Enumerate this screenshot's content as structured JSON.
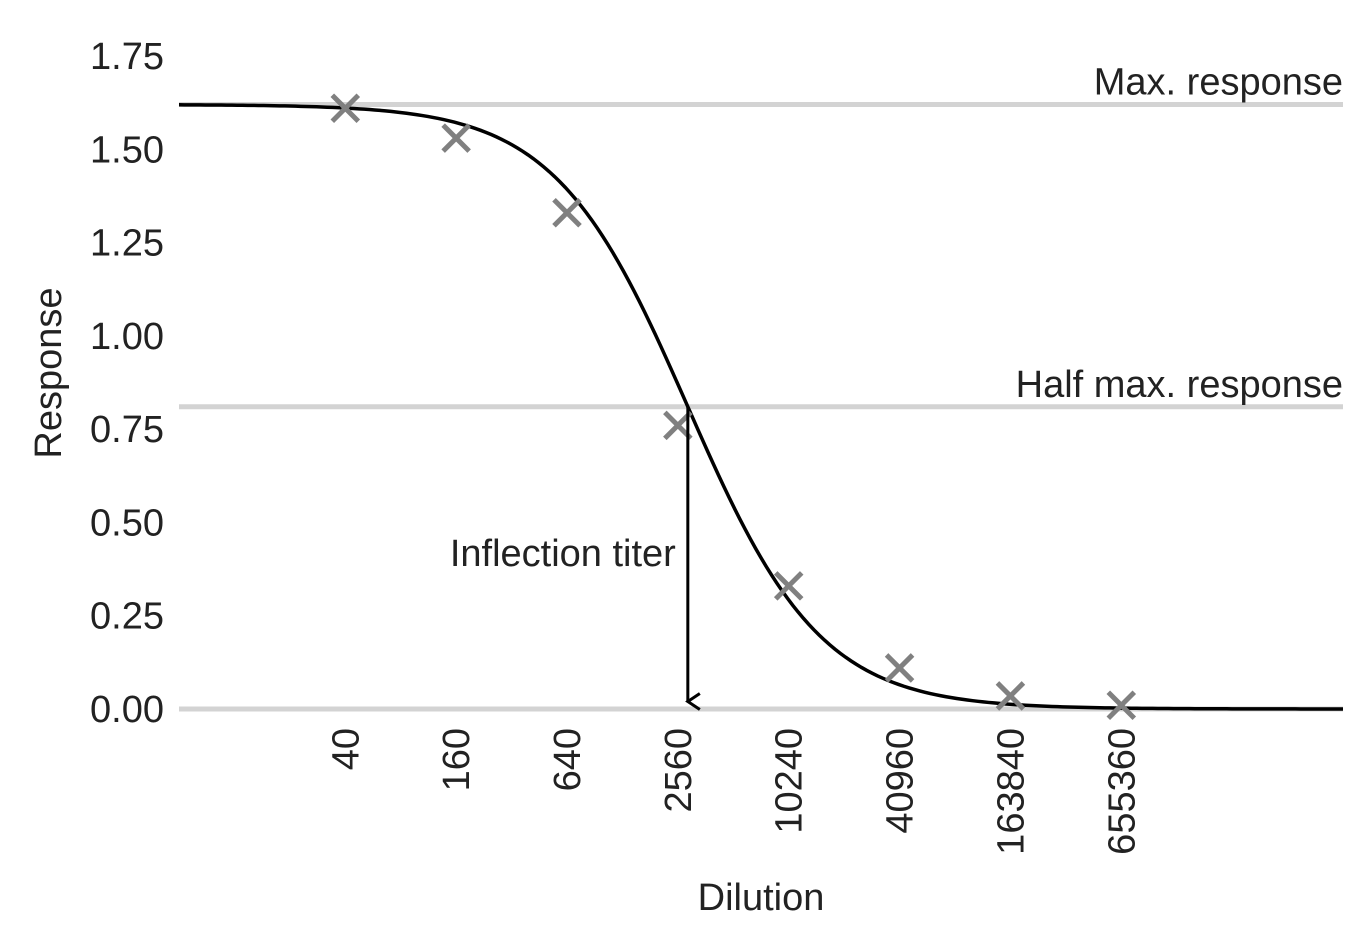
{
  "chart_data": {
    "type": "scatter",
    "xlabel": "Dilution",
    "ylabel": "Response",
    "x_scale": "log",
    "grid": false,
    "xlim": [
      5,
      10485760
    ],
    "ylim": [
      0,
      1.75
    ],
    "x_ticks": [
      {
        "value": 40,
        "label": "40"
      },
      {
        "value": 160,
        "label": "160"
      },
      {
        "value": 640,
        "label": "640"
      },
      {
        "value": 2560,
        "label": "2560"
      },
      {
        "value": 10240,
        "label": "10240"
      },
      {
        "value": 40960,
        "label": "40960"
      },
      {
        "value": 163840,
        "label": "163840"
      },
      {
        "value": 655360,
        "label": "655360"
      }
    ],
    "y_ticks": [
      {
        "value": 0,
        "label": "0.00"
      },
      {
        "value": 0.25,
        "label": "0.25"
      },
      {
        "value": 0.5,
        "label": "0.50"
      },
      {
        "value": 0.75,
        "label": "0.75"
      },
      {
        "value": 1.0,
        "label": "1.00"
      },
      {
        "value": 1.25,
        "label": "1.25"
      },
      {
        "value": 1.5,
        "label": "1.50"
      },
      {
        "value": 1.75,
        "label": "1.75"
      }
    ],
    "points": {
      "marker": "x",
      "color": "#808080",
      "x": [
        40,
        160,
        640,
        2560,
        10240,
        40960,
        163840,
        655360
      ],
      "y": [
        1.61,
        1.53,
        1.33,
        0.76,
        0.33,
        0.11,
        0.035,
        0.01
      ]
    },
    "fit_curve": {
      "color": "#000000",
      "top": 1.62,
      "bottom": 0,
      "inflection_x": 2900,
      "hill_slope": 1.2
    },
    "reference_lines": [
      {
        "y": 1.62,
        "label": "Max. response",
        "color": "#d3d3d3"
      },
      {
        "y": 0.81,
        "label": "Half max. response",
        "color": "#d3d3d3"
      },
      {
        "y": 0,
        "label": "",
        "color": "#d3d3d3"
      }
    ],
    "annotation": {
      "label": "Inflection titer",
      "x": 2900,
      "y_from": 0.81,
      "y_to": 0.02
    }
  }
}
